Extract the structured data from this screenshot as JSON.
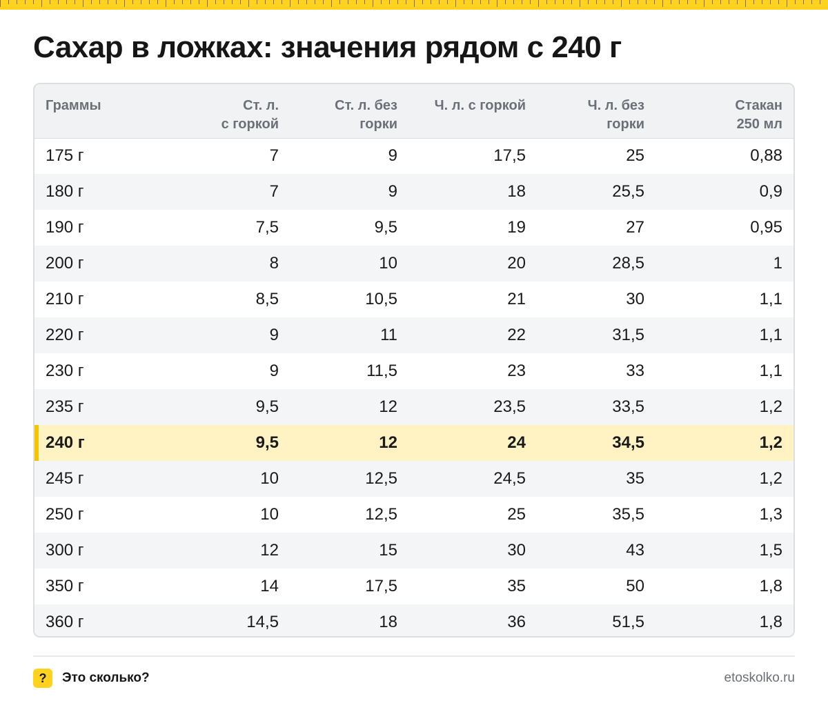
{
  "title": "Сахар в ложках: значения рядом с 240 г",
  "colors": {
    "accent": "#ffd21f",
    "highlight_row": "#fff3c4",
    "highlight_marker": "#f5c400"
  },
  "chart_data": {
    "type": "table",
    "columns": [
      [
        "Граммы"
      ],
      [
        "Ст. л.",
        "с горкой"
      ],
      [
        "Ст. л. без",
        "горки"
      ],
      [
        "Ч. л. с горкой"
      ],
      [
        "Ч. л. без",
        "горки"
      ],
      [
        "Стакан",
        "250 мл"
      ]
    ],
    "highlight_row_index": 8,
    "rows": [
      [
        "175 г",
        "7",
        "9",
        "17,5",
        "25",
        "0,88"
      ],
      [
        "180 г",
        "7",
        "9",
        "18",
        "25,5",
        "0,9"
      ],
      [
        "190 г",
        "7,5",
        "9,5",
        "19",
        "27",
        "0,95"
      ],
      [
        "200 г",
        "8",
        "10",
        "20",
        "28,5",
        "1"
      ],
      [
        "210 г",
        "8,5",
        "10,5",
        "21",
        "30",
        "1,1"
      ],
      [
        "220 г",
        "9",
        "11",
        "22",
        "31,5",
        "1,1"
      ],
      [
        "230 г",
        "9",
        "11,5",
        "23",
        "33",
        "1,1"
      ],
      [
        "235 г",
        "9,5",
        "12",
        "23,5",
        "33,5",
        "1,2"
      ],
      [
        "240 г",
        "9,5",
        "12",
        "24",
        "34,5",
        "1,2"
      ],
      [
        "245 г",
        "10",
        "12,5",
        "24,5",
        "35",
        "1,2"
      ],
      [
        "250 г",
        "10",
        "12,5",
        "25",
        "35,5",
        "1,3"
      ],
      [
        "300 г",
        "12",
        "15",
        "30",
        "43",
        "1,5"
      ],
      [
        "350 г",
        "14",
        "17,5",
        "35",
        "50",
        "1,8"
      ],
      [
        "360 г",
        "14,5",
        "18",
        "36",
        "51,5",
        "1,8"
      ]
    ]
  },
  "footer": {
    "badge": "?",
    "brand": "Это сколько?",
    "site": "etoskolko.ru"
  }
}
